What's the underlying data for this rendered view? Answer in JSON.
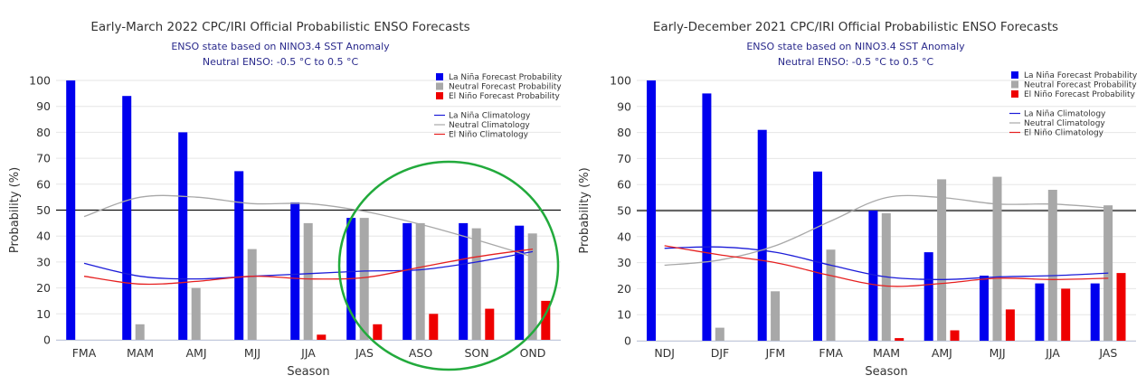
{
  "chart_data": [
    {
      "type": "bar",
      "title": "Early-March 2022 CPC/IRI Official Probabilistic ENSO Forecasts",
      "subtitle_line1": "ENSO state based on NINO3.4 SST Anomaly",
      "subtitle_line2": "Neutral ENSO: -0.5 °C to 0.5 °C",
      "xlabel": "Season",
      "ylabel": "Probability (%)",
      "ylim": [
        0,
        100
      ],
      "yticks": [
        0,
        10,
        20,
        30,
        40,
        50,
        60,
        70,
        80,
        90,
        100
      ],
      "reference_line": 50,
      "categories": [
        "FMA",
        "MAM",
        "AMJ",
        "MJJ",
        "JJA",
        "JAS",
        "ASO",
        "SON",
        "OND"
      ],
      "series": [
        {
          "name": "La Niña Forecast Probability",
          "color": "#0000ee",
          "values": [
            100,
            94,
            80,
            65,
            53,
            47,
            45,
            45,
            44
          ]
        },
        {
          "name": "Neutral Forecast Probability",
          "color": "#a8a8a8",
          "values": [
            0,
            6,
            20,
            35,
            45,
            47,
            45,
            43,
            41
          ]
        },
        {
          "name": "El Niño Forecast Probability",
          "color": "#ee0000",
          "values": [
            0,
            0,
            0,
            0,
            2,
            6,
            10,
            12,
            15
          ]
        }
      ],
      "climatology": [
        {
          "name": "La Niña Climatology",
          "color": "#1c1cd8",
          "values": [
            29.5,
            24.5,
            23.5,
            24.5,
            25.5,
            26.5,
            27,
            30,
            34
          ]
        },
        {
          "name": "Neutral Climatology",
          "color": "#a8a8a8",
          "values": [
            47.5,
            55,
            55,
            52.5,
            52.5,
            49.5,
            44.5,
            38.5,
            32
          ]
        },
        {
          "name": "El Niño Climatology",
          "color": "#e62020",
          "values": [
            24.5,
            21.5,
            22.5,
            24.5,
            23.5,
            24,
            28,
            32,
            35
          ]
        }
      ],
      "annotation": "green circle highlighting JAS–OND"
    },
    {
      "type": "bar",
      "title": "Early-December 2021 CPC/IRI Official Probabilistic ENSO Forecasts",
      "subtitle_line1": "ENSO state based on NINO3.4 SST Anomaly",
      "subtitle_line2": "Neutral ENSO: -0.5 °C to 0.5 °C",
      "xlabel": "Season",
      "ylabel": "Probability (%)",
      "ylim": [
        0,
        100
      ],
      "yticks": [
        0,
        10,
        20,
        30,
        40,
        50,
        60,
        70,
        80,
        90,
        100
      ],
      "reference_line": 50,
      "categories": [
        "NDJ",
        "DJF",
        "JFM",
        "FMA",
        "MAM",
        "AMJ",
        "MJJ",
        "JJA",
        "JAS"
      ],
      "series": [
        {
          "name": "La Niña Forecast Probability",
          "color": "#0000ee",
          "values": [
            100,
            95,
            81,
            65,
            50,
            34,
            25,
            22,
            22
          ]
        },
        {
          "name": "Neutral Forecast Probability",
          "color": "#a8a8a8",
          "values": [
            0,
            5,
            19,
            35,
            49,
            62,
            63,
            58,
            52
          ]
        },
        {
          "name": "El Niño Forecast Probability",
          "color": "#ee0000",
          "values": [
            0,
            0,
            0,
            0,
            1,
            4,
            12,
            20,
            26
          ]
        }
      ],
      "climatology": [
        {
          "name": "La Niña Climatology",
          "color": "#1c1cd8",
          "values": [
            35.5,
            36,
            34,
            29,
            24.5,
            23.5,
            24.5,
            25,
            26
          ]
        },
        {
          "name": "Neutral Climatology",
          "color": "#a8a8a8",
          "values": [
            29,
            31,
            36.5,
            46,
            55,
            55,
            52.5,
            52.5,
            51
          ]
        },
        {
          "name": "El Niño Climatology",
          "color": "#e62020",
          "values": [
            36.5,
            33,
            30,
            25,
            21,
            22,
            24,
            23.5,
            24
          ]
        }
      ]
    }
  ]
}
